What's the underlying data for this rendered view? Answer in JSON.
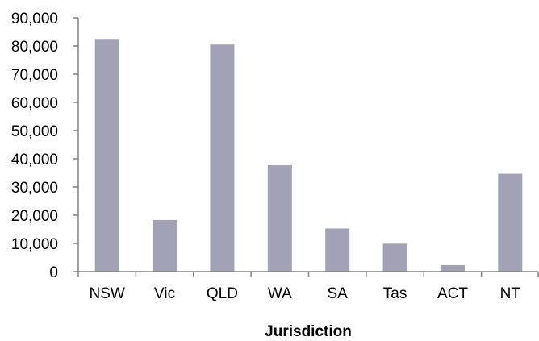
{
  "chart_data": {
    "type": "bar",
    "title": "",
    "xlabel": "Jurisdiction",
    "ylabel": "",
    "categories": [
      "NSW",
      "Vic",
      "QLD",
      "WA",
      "SA",
      "Tas",
      "ACT",
      "NT"
    ],
    "values": [
      82500,
      18300,
      80500,
      37700,
      15300,
      9900,
      2300,
      34700
    ],
    "ylim": [
      0,
      90000
    ],
    "yticks": [
      0,
      10000,
      20000,
      30000,
      40000,
      50000,
      60000,
      70000,
      80000,
      90000
    ],
    "ytick_labels": [
      "0",
      "10,000",
      "20,000",
      "30,000",
      "40,000",
      "50,000",
      "60,000",
      "70,000",
      "80,000",
      "90,000"
    ],
    "grid": false,
    "legend": "none",
    "bar_color": "#a2a2b6",
    "axis_color": "#808080"
  }
}
